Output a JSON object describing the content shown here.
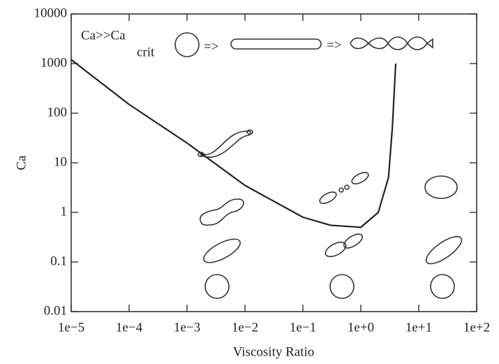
{
  "chart_data": {
    "type": "line",
    "x_label": "Viscosity Ratio",
    "y_label": "Ca",
    "xscale": "log",
    "yscale": "log",
    "xlim": [
      1e-05,
      100
    ],
    "ylim": [
      0.01,
      10000
    ],
    "xticks": [
      {
        "value": 1e-05,
        "label": "1e−5"
      },
      {
        "value": 0.0001,
        "label": "1e−4"
      },
      {
        "value": 0.001,
        "label": "1e−3"
      },
      {
        "value": 0.01,
        "label": "1e−2"
      },
      {
        "value": 0.1,
        "label": "1e−1"
      },
      {
        "value": 1,
        "label": "1e+0"
      },
      {
        "value": 10,
        "label": "1e+1"
      },
      {
        "value": 100,
        "label": "1e+2"
      }
    ],
    "yticks": [
      0.01,
      0.1,
      1,
      10,
      100,
      1000,
      10000
    ],
    "annotations": [
      "Ca>>Ca",
      "crit",
      "=>",
      "=>"
    ],
    "x": [
      1e-05,
      0.0001,
      0.001,
      0.01,
      0.1,
      0.3,
      1,
      2,
      3,
      3.5,
      4
    ],
    "series": [
      {
        "color": "#222222",
        "values": [
          1200,
          150,
          25,
          3.5,
          0.8,
          0.55,
          0.5,
          1,
          5,
          50,
          1000
        ]
      }
    ]
  }
}
